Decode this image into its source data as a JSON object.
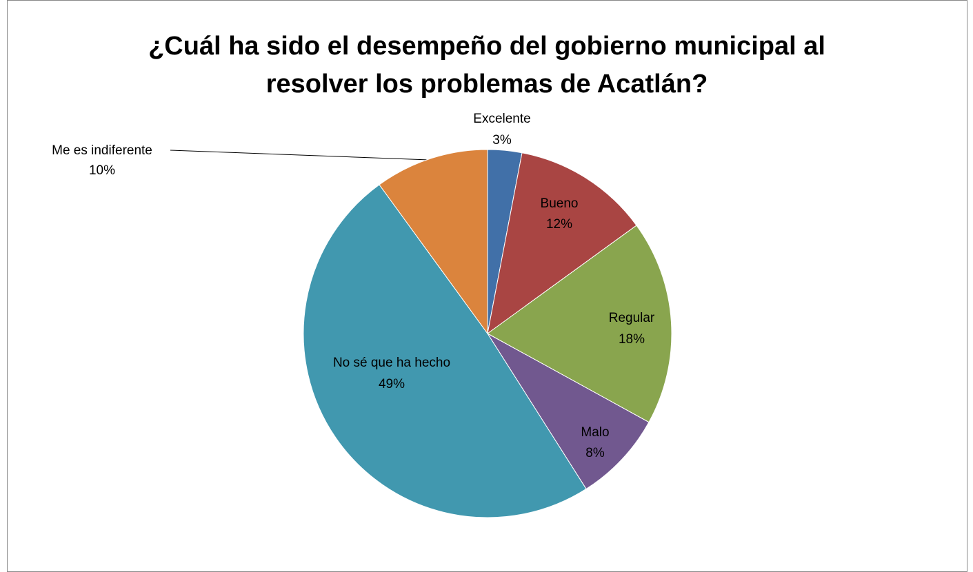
{
  "chart_data": {
    "type": "pie",
    "title": "¿Cuál ha sido el desempeño del gobierno municipal al resolver los problemas de Acatlán?",
    "categories": [
      "Excelente",
      "Bueno",
      "Regular",
      "Malo",
      "No sé que ha hecho",
      "Me es indiferente"
    ],
    "values": [
      3,
      12,
      18,
      8,
      49,
      10
    ],
    "value_labels": [
      "3%",
      "12%",
      "18%",
      "8%",
      "49%",
      "10%"
    ],
    "colors": [
      "#4170a8",
      "#a94543",
      "#89a54e",
      "#71588f",
      "#4198af",
      "#db843d"
    ]
  }
}
